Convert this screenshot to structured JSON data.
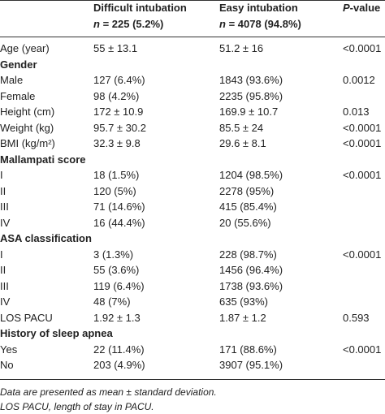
{
  "header": {
    "col1_line1": "Difficult intubation",
    "col1_n": "n",
    "col1_line2": "= 225 (5.2%)",
    "col2_line1": "Easy intubation",
    "col2_n": "n",
    "col2_line2": "= 4078 (94.8%)",
    "col3_p": "P",
    "col3_rest": "-value"
  },
  "rows": [
    {
      "type": "data",
      "label": "Age (year)",
      "difficult": "55 ± 13.1",
      "easy": "51.2 ± 16",
      "p": "<0.0001"
    },
    {
      "type": "section",
      "label": "Gender"
    },
    {
      "type": "data",
      "label": "Male",
      "difficult": "127 (6.4%)",
      "easy": "1843 (93.6%)",
      "p": "0.0012"
    },
    {
      "type": "data",
      "label": "Female",
      "difficult": "98 (4.2%)",
      "easy": "2235 (95.8%)",
      "p": ""
    },
    {
      "type": "data",
      "label": "Height (cm)",
      "difficult": "172 ± 10.9",
      "easy": "169.9 ± 10.7",
      "p": "0.013"
    },
    {
      "type": "data",
      "label": "Weight (kg)",
      "difficult": "95.7 ± 30.2",
      "easy": "85.5 ± 24",
      "p": "<0.0001"
    },
    {
      "type": "data",
      "label": "BMI (kg/m²)",
      "difficult": "32.3 ± 9.8",
      "easy": "29.6 ± 8.1",
      "p": "<0.0001"
    },
    {
      "type": "section",
      "label": "Mallampati score"
    },
    {
      "type": "data",
      "label": "I",
      "difficult": "18 (1.5%)",
      "easy": "1204 (98.5%)",
      "p": "<0.0001"
    },
    {
      "type": "data",
      "label": "II",
      "difficult": "120 (5%)",
      "easy": "2278 (95%)",
      "p": ""
    },
    {
      "type": "data",
      "label": "III",
      "difficult": "71 (14.6%)",
      "easy": "415 (85.4%)",
      "p": ""
    },
    {
      "type": "data",
      "label": "IV",
      "difficult": "16 (44.4%)",
      "easy": "20 (55.6%)",
      "p": ""
    },
    {
      "type": "section",
      "label": "ASA classification"
    },
    {
      "type": "data",
      "label": "I",
      "difficult": "3 (1.3%)",
      "easy": "228 (98.7%)",
      "p": "<0.0001"
    },
    {
      "type": "data",
      "label": "II",
      "difficult": "55 (3.6%)",
      "easy": "1456 (96.4%)",
      "p": ""
    },
    {
      "type": "data",
      "label": "III",
      "difficult": "119 (6.4%)",
      "easy": "1738 (93.6%)",
      "p": ""
    },
    {
      "type": "data",
      "label": "IV",
      "difficult": "48 (7%)",
      "easy": "635 (93%)",
      "p": ""
    },
    {
      "type": "data",
      "label": "LOS PACU",
      "difficult": "1.92 ± 1.3",
      "easy": "1.87 ± 1.2",
      "p": "0.593"
    },
    {
      "type": "section",
      "label": "History of sleep apnea"
    },
    {
      "type": "data",
      "label": "Yes",
      "difficult": "22 (11.4%)",
      "easy": "171 (88.6%)",
      "p": "<0.0001"
    },
    {
      "type": "data",
      "label": "No",
      "difficult": "203 (4.9%)",
      "easy": "3907 (95.1%)",
      "p": ""
    }
  ],
  "footnotes": [
    "Data are presented as mean ± standard deviation.",
    "LOS PACU, length of stay in PACU."
  ]
}
